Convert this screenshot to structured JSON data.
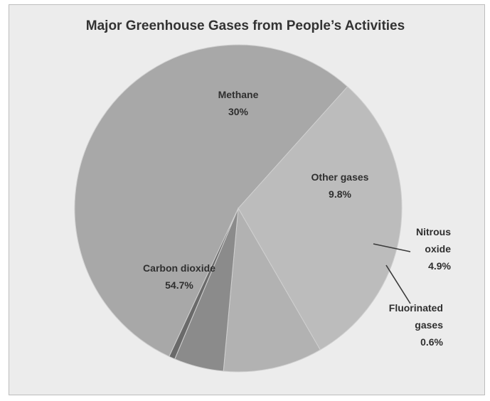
{
  "chart_data": {
    "type": "pie",
    "title": "Major Greenhouse Gases from People’s Activities",
    "categories": [
      "Carbon dioxide",
      "Methane",
      "Other gases",
      "Nitrous oxide",
      "Fluorinated gases"
    ],
    "values": [
      54.7,
      30,
      9.8,
      4.9,
      0.6
    ],
    "value_labels": [
      "54.7%",
      "30%",
      "9.8%",
      "4.9%",
      "0.6%"
    ],
    "slices": [
      {
        "label_lines": [
          "Carbon dioxide"
        ],
        "value_label": "54.7%",
        "value": 54.7,
        "color": "#a8a8a8"
      },
      {
        "label_lines": [
          "Methane"
        ],
        "value_label": "30%",
        "value": 30,
        "color": "#bcbcbc"
      },
      {
        "label_lines": [
          "Other gases"
        ],
        "value_label": "9.8%",
        "value": 9.8,
        "color": "#b2b2b2"
      },
      {
        "label_lines": [
          "Nitrous",
          "oxide"
        ],
        "value_label": "4.9%",
        "value": 4.9,
        "color": "#8b8b8b"
      },
      {
        "label_lines": [
          "Fluorinated",
          "gases"
        ],
        "value_label": "0.6%",
        "value": 0.6,
        "color": "#6a6a6a"
      }
    ],
    "legend": "none",
    "grid": false
  },
  "colors": {
    "background": "#ececec",
    "slice_border": "#d0d0d0",
    "text": "#2f2f2f"
  }
}
